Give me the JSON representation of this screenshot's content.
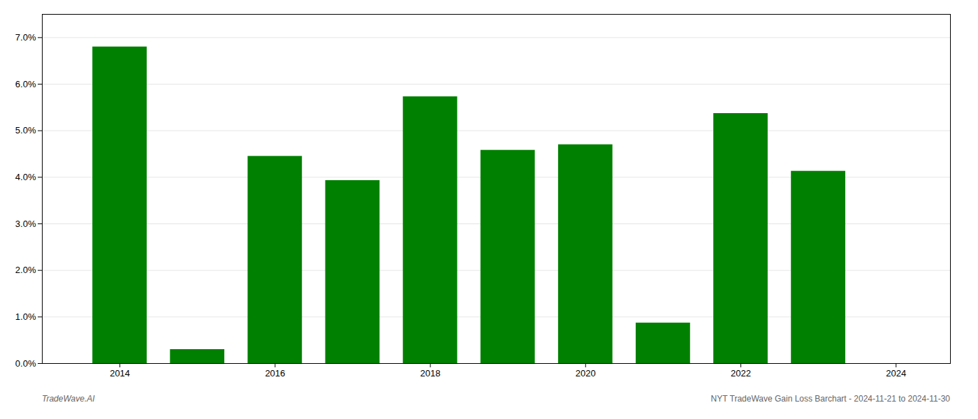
{
  "chart_data": {
    "type": "bar",
    "x": [
      2014,
      2015,
      2016,
      2017,
      2018,
      2019,
      2020,
      2021,
      2022,
      2023
    ],
    "values": [
      0.068,
      0.003,
      0.0445,
      0.0393,
      0.0573,
      0.0458,
      0.047,
      0.0087,
      0.0537,
      0.0413
    ],
    "color": "#008000",
    "xlim": [
      2013.0,
      2024.7
    ],
    "xticks": [
      2014,
      2016,
      2018,
      2020,
      2022,
      2024
    ],
    "ylim": [
      0,
      0.075
    ],
    "yticks": [
      {
        "value": 0.0,
        "label": "0.0%"
      },
      {
        "value": 0.01,
        "label": "1.0%"
      },
      {
        "value": 0.02,
        "label": "2.0%"
      },
      {
        "value": 0.03,
        "label": "3.0%"
      },
      {
        "value": 0.04,
        "label": "4.0%"
      },
      {
        "value": 0.05,
        "label": "5.0%"
      },
      {
        "value": 0.06,
        "label": "6.0%"
      },
      {
        "value": 0.07,
        "label": "7.0%"
      }
    ],
    "grid": true,
    "annotations": [
      "TradeWave.AI",
      "NYT TradeWave Gain Loss Barchart - 2024-11-21 to 2024-11-30"
    ]
  }
}
